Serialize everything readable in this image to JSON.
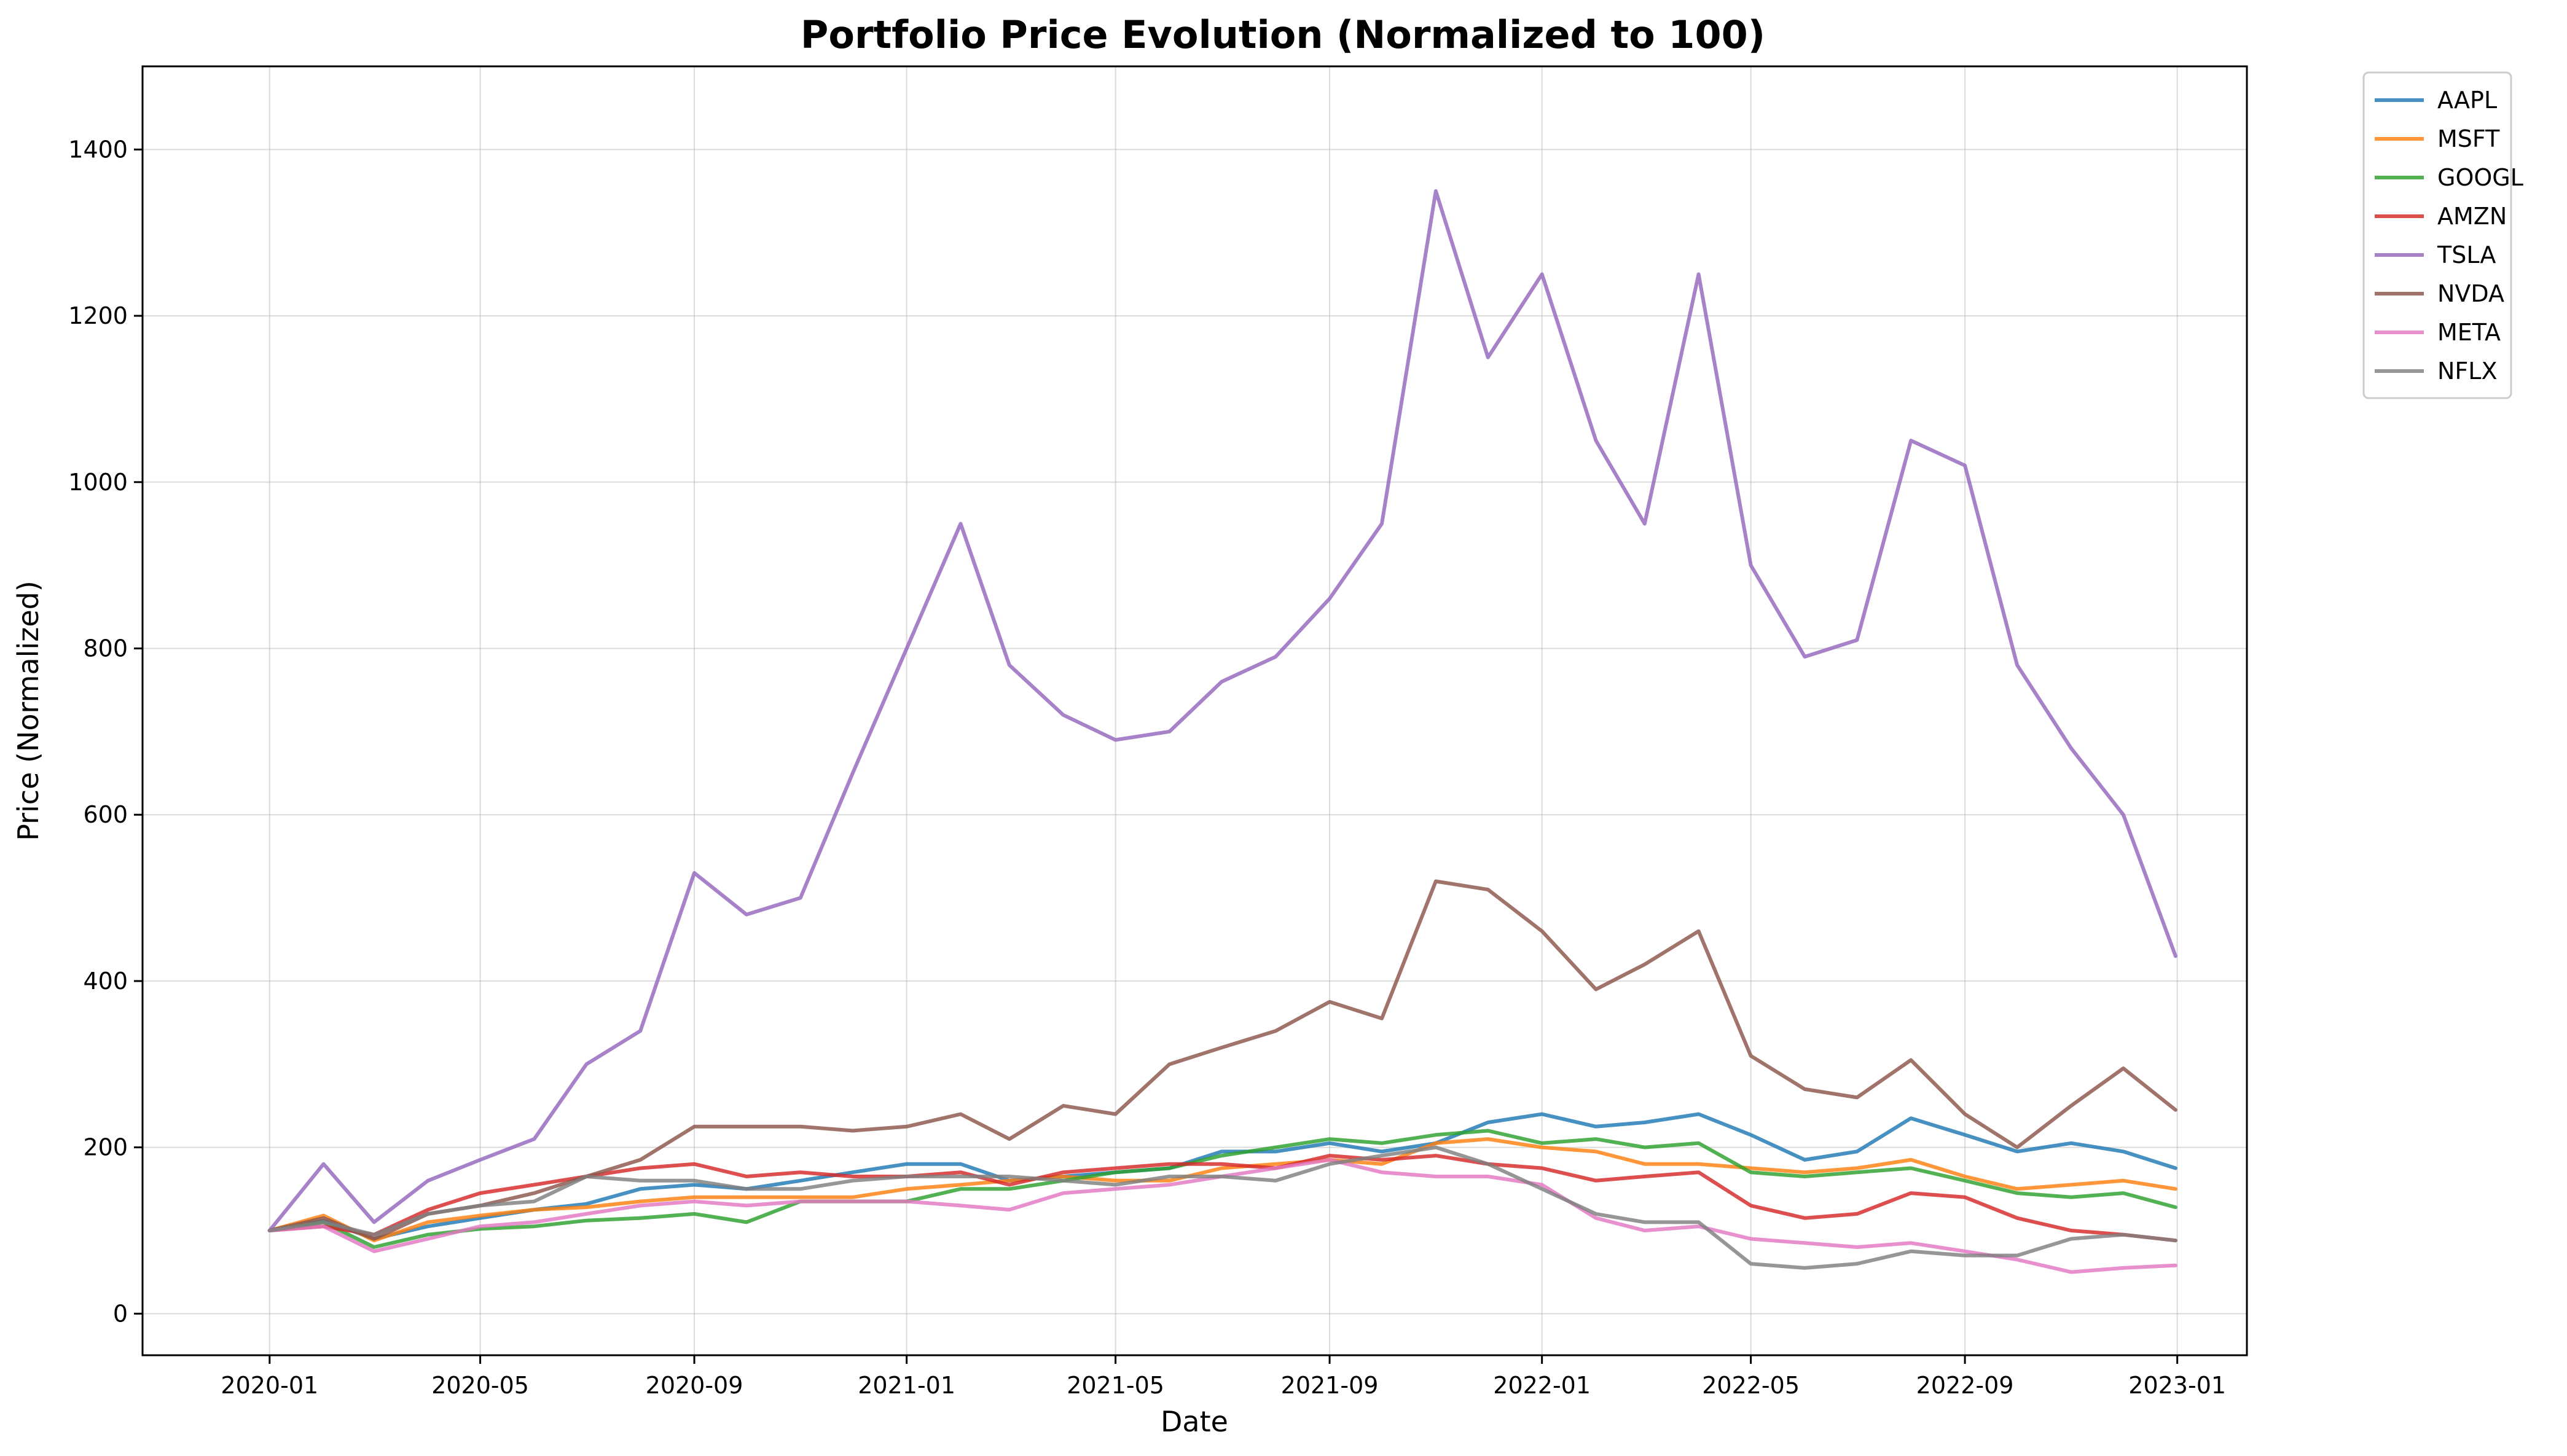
{
  "chart_data": {
    "type": "line",
    "title": "Portfolio Price Evolution (Normalized to 100)",
    "xlabel": "Date",
    "ylabel": "Price (Normalized)",
    "xlim": [
      "2019-10-20",
      "2023-02-10"
    ],
    "ylim": [
      -50,
      1500
    ],
    "x_ticks": [
      "2020-01",
      "2020-05",
      "2020-09",
      "2021-01",
      "2021-05",
      "2021-09",
      "2022-01",
      "2022-05",
      "2022-09",
      "2023-01"
    ],
    "y_ticks": [
      0,
      200,
      400,
      600,
      800,
      1000,
      1200,
      1400
    ],
    "grid": true,
    "legend_position": "upper right outside",
    "x": [
      "2020-01-01",
      "2020-02-01",
      "2020-03-01",
      "2020-04-01",
      "2020-05-01",
      "2020-06-01",
      "2020-07-01",
      "2020-08-01",
      "2020-09-01",
      "2020-10-01",
      "2020-11-01",
      "2020-12-01",
      "2021-01-01",
      "2021-02-01",
      "2021-03-01",
      "2021-04-01",
      "2021-05-01",
      "2021-06-01",
      "2021-07-01",
      "2021-08-01",
      "2021-09-01",
      "2021-10-01",
      "2021-11-01",
      "2021-12-01",
      "2022-01-01",
      "2022-02-01",
      "2022-03-01",
      "2022-04-01",
      "2022-05-01",
      "2022-06-01",
      "2022-07-01",
      "2022-08-01",
      "2022-09-01",
      "2022-10-01",
      "2022-11-01",
      "2022-12-01",
      "2022-12-31"
    ],
    "series": [
      {
        "name": "AAPL",
        "color": "#1f77b4",
        "values": [
          100,
          112,
          90,
          105,
          115,
          125,
          132,
          150,
          155,
          150,
          160,
          170,
          180,
          180,
          160,
          165,
          170,
          175,
          195,
          195,
          205,
          195,
          205,
          230,
          240,
          225,
          230,
          240,
          215,
          185,
          195,
          235,
          215,
          195,
          205,
          195,
          175
        ]
      },
      {
        "name": "MSFT",
        "color": "#ff7f0e",
        "values": [
          100,
          118,
          88,
          110,
          118,
          125,
          128,
          135,
          140,
          140,
          140,
          140,
          150,
          155,
          160,
          165,
          160,
          160,
          175,
          180,
          185,
          180,
          205,
          210,
          200,
          195,
          180,
          180,
          175,
          170,
          175,
          185,
          165,
          150,
          155,
          160,
          150
        ]
      },
      {
        "name": "GOOGL",
        "color": "#2ca02c",
        "values": [
          100,
          110,
          80,
          95,
          102,
          105,
          112,
          115,
          120,
          110,
          135,
          135,
          135,
          150,
          150,
          160,
          170,
          175,
          190,
          200,
          210,
          205,
          215,
          220,
          205,
          210,
          200,
          205,
          170,
          165,
          170,
          175,
          160,
          145,
          140,
          145,
          128
        ]
      },
      {
        "name": "AMZN",
        "color": "#d62728",
        "values": [
          100,
          105,
          95,
          125,
          145,
          155,
          165,
          175,
          180,
          165,
          170,
          165,
          165,
          170,
          155,
          170,
          175,
          180,
          180,
          175,
          190,
          185,
          190,
          180,
          175,
          160,
          165,
          170,
          130,
          115,
          120,
          145,
          140,
          115,
          100,
          95,
          88
        ]
      },
      {
        "name": "TSLA",
        "color": "#9467bd",
        "values": [
          100,
          180,
          110,
          160,
          185,
          210,
          300,
          340,
          530,
          480,
          500,
          650,
          800,
          950,
          780,
          720,
          690,
          700,
          760,
          790,
          860,
          950,
          1350,
          1150,
          1250,
          1050,
          950,
          1250,
          900,
          790,
          810,
          1050,
          1020,
          780,
          680,
          600,
          430
        ]
      },
      {
        "name": "NVDA",
        "color": "#8c564b",
        "values": [
          100,
          115,
          90,
          120,
          130,
          145,
          165,
          185,
          225,
          225,
          225,
          220,
          225,
          240,
          210,
          250,
          240,
          300,
          320,
          340,
          375,
          355,
          520,
          510,
          460,
          390,
          420,
          460,
          310,
          270,
          260,
          305,
          240,
          200,
          250,
          295,
          245
        ]
      },
      {
        "name": "META",
        "color": "#e377c2",
        "values": [
          100,
          105,
          75,
          90,
          105,
          110,
          120,
          130,
          135,
          130,
          135,
          135,
          135,
          130,
          125,
          145,
          150,
          155,
          165,
          175,
          185,
          170,
          165,
          165,
          155,
          115,
          100,
          105,
          90,
          85,
          80,
          85,
          75,
          65,
          50,
          55,
          58
        ]
      },
      {
        "name": "NFLX",
        "color": "#7f7f7f",
        "values": [
          100,
          110,
          95,
          120,
          130,
          135,
          165,
          160,
          160,
          150,
          150,
          160,
          165,
          165,
          165,
          160,
          155,
          165,
          165,
          160,
          180,
          190,
          200,
          180,
          150,
          120,
          110,
          110,
          60,
          55,
          60,
          75,
          70,
          70,
          90,
          95,
          88
        ]
      }
    ]
  }
}
